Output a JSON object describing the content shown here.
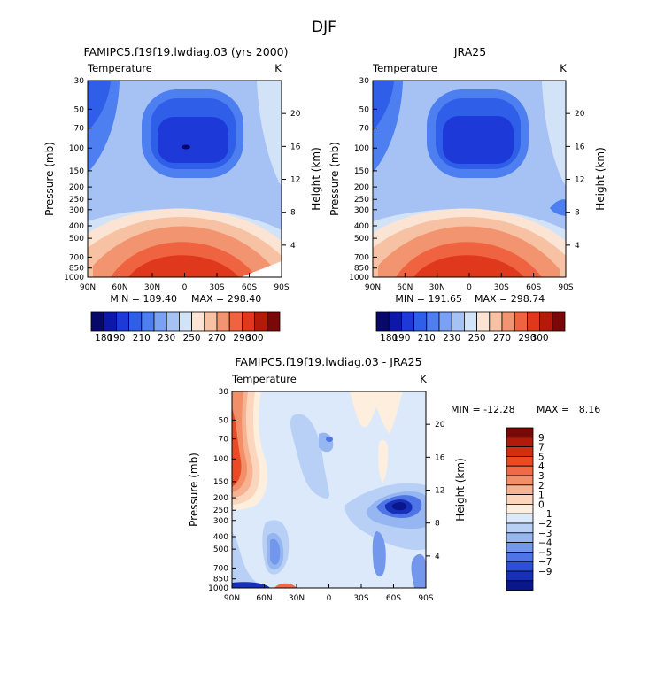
{
  "figure_title": "DJF",
  "chart_data": [
    {
      "type": "contour",
      "title": "FAMIPC5.f19f19.lwdiag.03 (yrs 2000)",
      "variable": "Temperature",
      "units": "K",
      "xlabel": "",
      "ylabel": "Pressure (mb)",
      "y2label": "Height (km)",
      "x_ticks": [
        "90N",
        "60N",
        "30N",
        "0",
        "30S",
        "60S",
        "90S"
      ],
      "x_values": [
        90,
        60,
        30,
        0,
        -30,
        -60,
        -90
      ],
      "y_ticks": [
        "30",
        "50",
        "70",
        "100",
        "150",
        "200",
        "250",
        "300",
        "400",
        "500",
        "700",
        "850",
        "1000"
      ],
      "y_values": [
        30,
        50,
        70,
        100,
        150,
        200,
        250,
        300,
        400,
        500,
        700,
        850,
        1000
      ],
      "y2_ticks": [
        "20",
        "16",
        "12",
        "8",
        "4"
      ],
      "y2_values": [
        20,
        16,
        12,
        8,
        4
      ],
      "ylim": [
        1000,
        30
      ],
      "xlim": [
        90,
        -90
      ],
      "min_label": "MIN = 189.40",
      "max_label": "MAX = 298.40",
      "min": 189.4,
      "max": 298.4,
      "contour_levels": [
        180,
        190,
        200,
        210,
        220,
        230,
        240,
        250,
        260,
        270,
        280,
        290,
        300
      ],
      "colorbar_labels": [
        "180",
        "190",
        "210",
        "230",
        "250",
        "270",
        "290",
        "300"
      ],
      "colorbar_label_values": [
        180,
        190,
        210,
        230,
        250,
        270,
        290,
        300
      ]
    },
    {
      "type": "contour",
      "title": "JRA25",
      "variable": "Temperature",
      "units": "K",
      "xlabel": "",
      "ylabel": "Pressure (mb)",
      "y2label": "Height (km)",
      "x_ticks": [
        "90N",
        "60N",
        "30N",
        "0",
        "30S",
        "60S",
        "90S"
      ],
      "x_values": [
        90,
        60,
        30,
        0,
        -30,
        -60,
        -90
      ],
      "y_ticks": [
        "30",
        "50",
        "70",
        "100",
        "150",
        "200",
        "250",
        "300",
        "400",
        "500",
        "700",
        "850",
        "1000"
      ],
      "y_values": [
        30,
        50,
        70,
        100,
        150,
        200,
        250,
        300,
        400,
        500,
        700,
        850,
        1000
      ],
      "y2_ticks": [
        "20",
        "16",
        "12",
        "8",
        "4"
      ],
      "y2_values": [
        20,
        16,
        12,
        8,
        4
      ],
      "ylim": [
        1000,
        30
      ],
      "xlim": [
        90,
        -90
      ],
      "min_label": "MIN = 191.65",
      "max_label": "MAX = 298.74",
      "min": 191.65,
      "max": 298.74,
      "contour_levels": [
        180,
        190,
        200,
        210,
        220,
        230,
        240,
        250,
        260,
        270,
        280,
        290,
        300
      ],
      "colorbar_labels": [
        "180",
        "190",
        "210",
        "230",
        "250",
        "270",
        "290",
        "300"
      ],
      "colorbar_label_values": [
        180,
        190,
        210,
        230,
        250,
        270,
        290,
        300
      ]
    },
    {
      "type": "contour",
      "title": "FAMIPC5.f19f19.lwdiag.03 - JRA25",
      "variable": "Temperature",
      "units": "K",
      "xlabel": "",
      "ylabel": "Pressure (mb)",
      "y2label": "Height (km)",
      "x_ticks": [
        "90N",
        "60N",
        "30N",
        "0",
        "30S",
        "60S",
        "90S"
      ],
      "x_values": [
        90,
        60,
        30,
        0,
        -30,
        -60,
        -90
      ],
      "y_ticks": [
        "30",
        "50",
        "70",
        "100",
        "150",
        "200",
        "250",
        "300",
        "400",
        "500",
        "700",
        "850",
        "1000"
      ],
      "y_values": [
        30,
        50,
        70,
        100,
        150,
        200,
        250,
        300,
        400,
        500,
        700,
        850,
        1000
      ],
      "y2_ticks": [
        "20",
        "16",
        "12",
        "8",
        "4"
      ],
      "y2_values": [
        20,
        16,
        12,
        8,
        4
      ],
      "ylim": [
        1000,
        30
      ],
      "xlim": [
        90,
        -90
      ],
      "min_label": "MIN = -12.28",
      "max_label": "MAX =   8.16",
      "min": -12.28,
      "max": 8.16,
      "contour_levels": [
        -9,
        -7,
        -5,
        -4,
        -3,
        -2,
        -1,
        0,
        1,
        2,
        3,
        4,
        5,
        7,
        9
      ],
      "colorbar_labels": [
        "9",
        "7",
        "5",
        "4",
        "3",
        "2",
        "1",
        "0",
        "−1",
        "−2",
        "−3",
        "−4",
        "−5",
        "−7",
        "−9"
      ],
      "colorbar_label_values": [
        9,
        7,
        5,
        4,
        3,
        2,
        1,
        0,
        -1,
        -2,
        -3,
        -4,
        -5,
        -7,
        -9
      ]
    }
  ],
  "colors": {
    "temp_scale": [
      "#08086b",
      "#0e18a8",
      "#1d3ad8",
      "#2f5ee8",
      "#4d7ff0",
      "#7aa1f2",
      "#a6c2f5",
      "#d2e3f8",
      "#fbe4d3",
      "#f7c2a4",
      "#f39470",
      "#ef6340",
      "#e0381c",
      "#b31a0a",
      "#7a0808"
    ],
    "diff_scale": [
      "#7a0808",
      "#b31a0a",
      "#d52d12",
      "#ec4a22",
      "#f06b45",
      "#f38f68",
      "#f7b391",
      "#fbd5bc",
      "#fdeede",
      "#dce9fb",
      "#b9d0f6",
      "#96b6f1",
      "#7397ed",
      "#4f74e6",
      "#2d4fd8",
      "#1730b8",
      "#0a168c"
    ]
  }
}
